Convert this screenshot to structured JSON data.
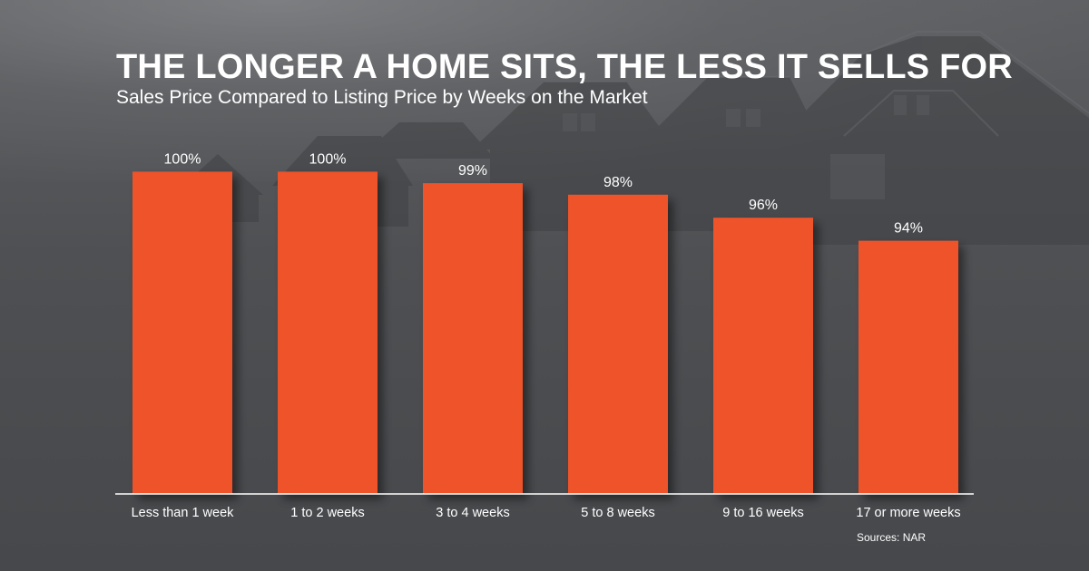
{
  "header": {
    "title": "THE LONGER A HOME SITS, THE LESS IT SELLS FOR",
    "subtitle": "Sales Price Compared to Listing Price by Weeks on the Market"
  },
  "footer": {
    "source": "Sources: NAR"
  },
  "colors": {
    "bar": "#ef532c",
    "text": "#ffffff",
    "axis": "#ffffff",
    "background": "#4e5053"
  },
  "chart_data": {
    "type": "bar",
    "title": "THE LONGER A HOME SITS, THE LESS IT SELLS FOR",
    "subtitle": "Sales Price Compared to Listing Price by Weeks on the Market",
    "categories": [
      "Less than 1 week",
      "1 to 2 weeks",
      "3 to 4 weeks",
      "5 to 8 weeks",
      "9 to 16 weeks",
      "17 or more weeks"
    ],
    "values": [
      100,
      100,
      99,
      98,
      96,
      94
    ],
    "value_labels": [
      "100%",
      "100%",
      "99%",
      "98%",
      "96%",
      "94%"
    ],
    "unit": "%",
    "ylim": [
      90,
      100
    ],
    "grid": false,
    "legend": "none"
  }
}
